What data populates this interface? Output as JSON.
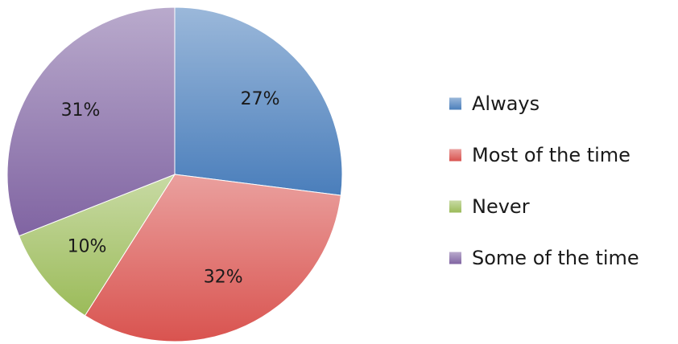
{
  "chart_data": {
    "type": "pie",
    "categories": [
      "Always",
      "Most of the time",
      "Never",
      "Some of the time"
    ],
    "values": [
      27,
      32,
      10,
      31
    ],
    "data_labels": [
      "27%",
      "32%",
      "10%",
      "31%"
    ],
    "colors": [
      "#4a7ebb",
      "#d9534f",
      "#9bbb59",
      "#8064a2"
    ],
    "start_angle_deg": 0,
    "direction": "clockwise",
    "legend_position": "right",
    "title": ""
  }
}
